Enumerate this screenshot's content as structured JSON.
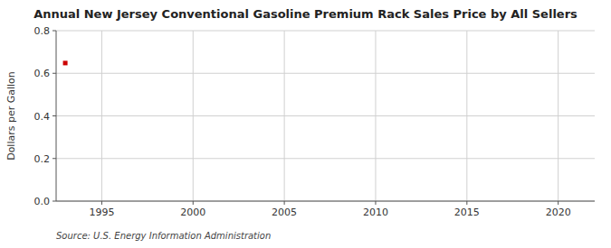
{
  "chart_data": {
    "type": "scatter",
    "title": "Annual New Jersey Conventional Gasoline Premium Rack Sales Price by All Sellers",
    "y_label": "Dollars per Gallon",
    "annotations": [
      "Source: U.S. Energy Information Administration"
    ],
    "x": [
      1993
    ],
    "values": [
      0.648
    ],
    "color": "#cc0000",
    "marker": "square",
    "xlim": [
      1992.5,
      2022
    ],
    "ylim": [
      0.0,
      0.8
    ],
    "xticks": [
      1995,
      2000,
      2005,
      2010,
      2015,
      2020
    ],
    "yticks": [
      {
        "value": 0.0,
        "label": "0.0"
      },
      0.2,
      0.4,
      0.6,
      0.8
    ],
    "grid": true
  }
}
